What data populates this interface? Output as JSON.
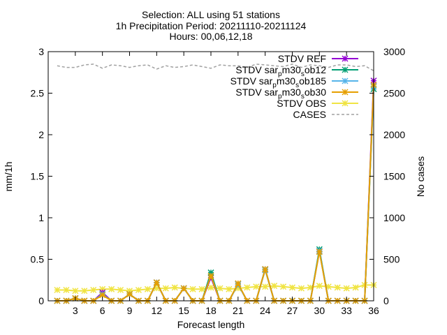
{
  "chart_data": {
    "type": "line",
    "title_lines": [
      "Selection: ALL using    51 stations",
      "1h Precipitation   Period: 20211110-20211124",
      "Hours: 00,06,12,18"
    ],
    "xlabel": "Forecast length",
    "ylabel": "mm/1h",
    "y2label": "No cases",
    "xlim": [
      0,
      36
    ],
    "ylim": [
      0,
      3
    ],
    "y2lim": [
      0,
      3000
    ],
    "xticks": [
      3,
      6,
      9,
      12,
      15,
      18,
      21,
      24,
      27,
      30,
      33,
      36
    ],
    "yticks": [
      0,
      0.5,
      1,
      1.5,
      2,
      2.5,
      3
    ],
    "ytick_labels": [
      "0",
      "0.5",
      "1",
      "1.5",
      "2",
      "2.5",
      "3"
    ],
    "y2ticks": [
      0,
      500,
      1000,
      1500,
      2000,
      2500,
      3000
    ],
    "grid": false,
    "legend_position": "top-right",
    "x": [
      1,
      2,
      3,
      4,
      5,
      6,
      7,
      8,
      9,
      10,
      11,
      12,
      13,
      14,
      15,
      16,
      17,
      18,
      19,
      20,
      21,
      22,
      23,
      24,
      25,
      26,
      27,
      28,
      29,
      30,
      31,
      32,
      33,
      34,
      35,
      36
    ],
    "series": [
      {
        "name": "STDV REF",
        "color": "#9400d3",
        "axis": "y",
        "marker": "cross",
        "values": [
          0,
          0,
          0.03,
          0,
          0,
          0.1,
          0,
          0,
          0.08,
          0,
          0,
          0.22,
          0,
          0,
          0.15,
          0,
          0,
          0.28,
          0,
          0,
          0.2,
          0,
          0,
          0.38,
          0,
          0,
          0,
          0,
          0,
          0.6,
          0,
          0,
          0,
          0,
          0,
          2.65
        ]
      },
      {
        "name": "STDV sar_pm30_sob12",
        "label_parts": [
          "STDV sar",
          "p",
          "m30",
          "s",
          "ob12"
        ],
        "color": "#009e73",
        "axis": "y",
        "marker": "cross",
        "values": [
          0,
          0,
          0.03,
          0,
          0,
          0.08,
          0,
          0,
          0.08,
          0,
          0,
          0.22,
          0,
          0,
          0.15,
          0,
          0,
          0.34,
          0,
          0,
          0.2,
          0,
          0,
          0.38,
          0,
          0,
          0,
          0,
          0,
          0.62,
          0,
          0,
          0,
          0,
          0,
          2.55
        ]
      },
      {
        "name": "STDV sar_pm30_sob185",
        "label_parts": [
          "STDV sar",
          "p",
          "m30",
          "s",
          "ob185"
        ],
        "color": "#56b4e9",
        "axis": "y",
        "marker": "cross",
        "values": [
          0,
          0,
          0.03,
          0,
          0,
          0.08,
          0,
          0,
          0.08,
          0,
          0,
          0.22,
          0,
          0,
          0.15,
          0,
          0,
          0.3,
          0,
          0,
          0.2,
          0,
          0,
          0.37,
          0,
          0,
          0,
          0,
          0,
          0.6,
          0,
          0,
          0,
          0,
          0,
          2.58
        ]
      },
      {
        "name": "STDV sar_pm30_sob30",
        "label_parts": [
          "STDV sar",
          "p",
          "m30",
          "s",
          "ob30"
        ],
        "color": "#e69f00",
        "axis": "y",
        "marker": "cross",
        "values": [
          0,
          0,
          0.03,
          0,
          0,
          0.07,
          0,
          0,
          0.08,
          0,
          0,
          0.22,
          0,
          0,
          0.15,
          0,
          0,
          0.3,
          0,
          0,
          0.21,
          0,
          0,
          0.38,
          0,
          0,
          0,
          0,
          0,
          0.59,
          0,
          0,
          0,
          0,
          0,
          2.6
        ]
      },
      {
        "name": "STDV OBS",
        "color": "#f0e442",
        "axis": "y",
        "marker": "cross",
        "values": [
          0.13,
          0.13,
          0.12,
          0.12,
          0.13,
          0.14,
          0.14,
          0.13,
          0.12,
          0.13,
          0.14,
          0.15,
          0.15,
          0.16,
          0.15,
          0.14,
          0.14,
          0.16,
          0.15,
          0.14,
          0.15,
          0.16,
          0.17,
          0.17,
          0.18,
          0.17,
          0.16,
          0.15,
          0.16,
          0.18,
          0.17,
          0.16,
          0.15,
          0.16,
          0.19,
          0.19
        ]
      },
      {
        "name": "CASES",
        "color": "#a0a0a0",
        "axis": "y2",
        "dashed": true,
        "values": [
          2830,
          2810,
          2810,
          2840,
          2850,
          2800,
          2840,
          2830,
          2810,
          2830,
          2840,
          2790,
          2830,
          2810,
          2820,
          2840,
          2820,
          2800,
          2840,
          2830,
          2830,
          2810,
          2850,
          2840,
          2830,
          2820,
          2850,
          2810,
          2840,
          2830,
          2810,
          2840,
          2840,
          2820,
          2830,
          2770
        ]
      }
    ]
  }
}
